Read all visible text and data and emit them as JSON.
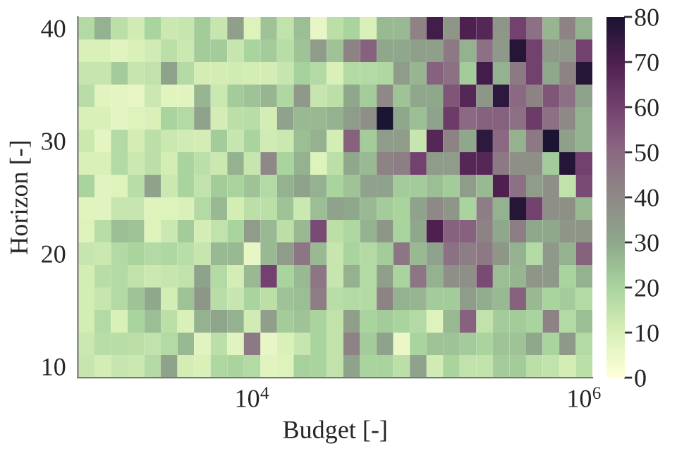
{
  "chart_data": {
    "type": "heatmap",
    "xlabel": "Budget [-]",
    "ylabel": "Horizon [-]",
    "log": "x",
    "x": [
      1000,
      1260,
      1580,
      2000,
      2510,
      3160,
      3980,
      5010,
      6310,
      7940,
      10000,
      12600,
      15800,
      20000,
      25100,
      31600,
      39800,
      50100,
      63100,
      79400,
      100000,
      126000,
      158000,
      200000,
      251000,
      316000,
      398000,
      501000,
      631000,
      794000,
      1000000
    ],
    "xlim": [
      891,
      1120000
    ],
    "ylim": [
      9,
      41
    ],
    "xticks": [
      {
        "value": 10000,
        "label": "10$^{4}$"
      },
      {
        "value": 1000000,
        "label": "10$^{6}$"
      }
    ],
    "yticks": [
      10,
      20,
      30,
      40
    ],
    "clim": [
      0,
      80
    ],
    "cticks": [
      0,
      10,
      20,
      30,
      40,
      50,
      60,
      70,
      80
    ],
    "cells": [
      [
        18,
        28,
        16,
        12,
        20,
        13,
        14,
        22,
        14,
        33,
        9,
        24,
        15,
        25,
        6,
        16,
        20,
        10,
        26,
        26,
        42,
        72,
        36,
        70,
        68,
        36,
        60,
        48,
        27,
        42,
        28
      ],
      [
        10,
        10,
        8,
        10,
        12,
        16,
        13,
        22,
        22,
        14,
        20,
        22,
        17,
        24,
        34,
        24,
        42,
        52,
        30,
        30,
        33,
        33,
        45,
        28,
        48,
        35,
        78,
        60,
        35,
        35,
        60
      ],
      [
        14,
        14,
        22,
        14,
        15,
        32,
        18,
        11,
        11,
        12,
        11,
        11,
        14,
        21,
        18,
        10,
        18,
        18,
        19,
        34,
        27,
        52,
        48,
        22,
        72,
        28,
        45,
        60,
        30,
        42,
        78
      ],
      [
        17,
        8,
        7,
        6,
        13,
        8,
        8,
        27,
        13,
        22,
        24,
        27,
        19,
        35,
        14,
        16,
        30,
        22,
        40,
        24,
        30,
        30,
        55,
        68,
        36,
        76,
        50,
        42,
        55,
        48,
        32
      ],
      [
        10,
        10,
        7,
        9,
        10,
        20,
        18,
        32,
        11,
        16,
        17,
        11,
        32,
        26,
        26,
        28,
        34,
        38,
        80,
        30,
        25,
        32,
        62,
        50,
        52,
        52,
        48,
        62,
        48,
        40,
        28
      ],
      [
        13,
        7,
        18,
        11,
        16,
        13,
        12,
        11,
        22,
        14,
        20,
        12,
        13,
        25,
        28,
        11,
        52,
        22,
        34,
        34,
        14,
        68,
        42,
        30,
        76,
        50,
        28,
        45,
        80,
        33,
        28
      ],
      [
        10,
        10,
        18,
        13,
        16,
        11,
        20,
        16,
        13,
        28,
        14,
        40,
        20,
        28,
        9,
        16,
        30,
        26,
        42,
        44,
        60,
        34,
        34,
        68,
        68,
        45,
        38,
        38,
        22,
        78,
        60
      ],
      [
        20,
        8,
        9,
        17,
        32,
        13,
        20,
        15,
        22,
        20,
        24,
        18,
        28,
        32,
        28,
        20,
        24,
        32,
        32,
        22,
        22,
        25,
        22,
        34,
        26,
        70,
        48,
        34,
        38,
        15,
        58
      ],
      [
        8,
        8,
        14,
        14,
        9,
        9,
        10,
        18,
        26,
        11,
        16,
        16,
        24,
        13,
        25,
        32,
        30,
        26,
        22,
        20,
        32,
        40,
        36,
        20,
        44,
        28,
        78,
        60,
        38,
        38,
        26
      ],
      [
        9,
        17,
        25,
        24,
        9,
        13,
        22,
        11,
        15,
        20,
        34,
        26,
        16,
        26,
        58,
        16,
        19,
        28,
        36,
        20,
        30,
        70,
        52,
        52,
        42,
        30,
        44,
        30,
        30,
        36,
        36
      ],
      [
        14,
        13,
        18,
        20,
        18,
        19,
        17,
        14,
        26,
        26,
        6,
        26,
        34,
        46,
        26,
        14,
        20,
        18,
        22,
        46,
        26,
        32,
        48,
        44,
        45,
        36,
        28,
        18,
        35,
        28,
        52
      ],
      [
        11,
        17,
        18,
        15,
        13,
        14,
        15,
        32,
        18,
        11,
        26,
        60,
        20,
        26,
        46,
        14,
        28,
        18,
        33,
        20,
        46,
        28,
        38,
        38,
        58,
        25,
        27,
        36,
        35,
        20,
        28
      ],
      [
        11,
        14,
        18,
        24,
        30,
        11,
        24,
        36,
        17,
        14,
        20,
        16,
        24,
        25,
        44,
        17,
        18,
        18,
        42,
        28,
        27,
        22,
        22,
        34,
        29,
        26,
        52,
        26,
        20,
        22,
        18
      ],
      [
        11,
        18,
        10,
        20,
        25,
        16,
        10,
        28,
        31,
        28,
        12,
        33,
        22,
        24,
        20,
        15,
        33,
        20,
        22,
        20,
        18,
        9,
        26,
        52,
        15,
        22,
        22,
        20,
        42,
        18,
        25
      ],
      [
        13,
        17,
        17,
        16,
        15,
        18,
        26,
        8,
        16,
        8,
        45,
        6,
        10,
        14,
        20,
        15,
        42,
        22,
        32,
        5,
        20,
        24,
        24,
        22,
        20,
        24,
        24,
        30,
        20,
        35,
        18
      ],
      [
        14,
        11,
        14,
        13,
        18,
        32,
        11,
        10,
        19,
        20,
        18,
        8,
        9,
        21,
        20,
        15,
        32,
        20,
        20,
        16,
        32,
        12,
        20,
        15,
        15,
        22,
        22,
        16,
        15,
        11,
        16
      ]
    ]
  }
}
